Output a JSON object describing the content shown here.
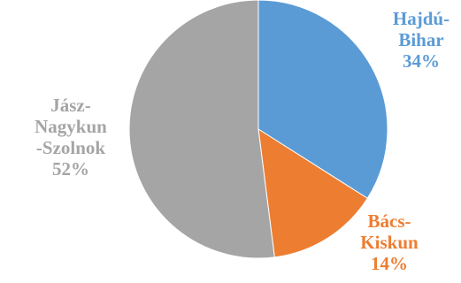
{
  "chart_data": {
    "type": "pie",
    "slices": [
      {
        "name": "Hajdú-Bihar",
        "value": 34,
        "label_lines": [
          "Hajdú-",
          "Bihar",
          "34%"
        ],
        "color": "#5B9BD5"
      },
      {
        "name": "Bács-Kiskun",
        "value": 14,
        "label_lines": [
          "Bács-",
          "Kiskun",
          "14%"
        ],
        "color": "#ED7D31"
      },
      {
        "name": "Jász-Nagykun-Szolnok",
        "value": 52,
        "label_lines": [
          "Jász-",
          "Nagykun",
          "-Szolnok",
          "52%"
        ],
        "color": "#A5A5A5"
      }
    ],
    "start_angle_deg": 0,
    "direction": "clockwise",
    "legend": "none"
  }
}
